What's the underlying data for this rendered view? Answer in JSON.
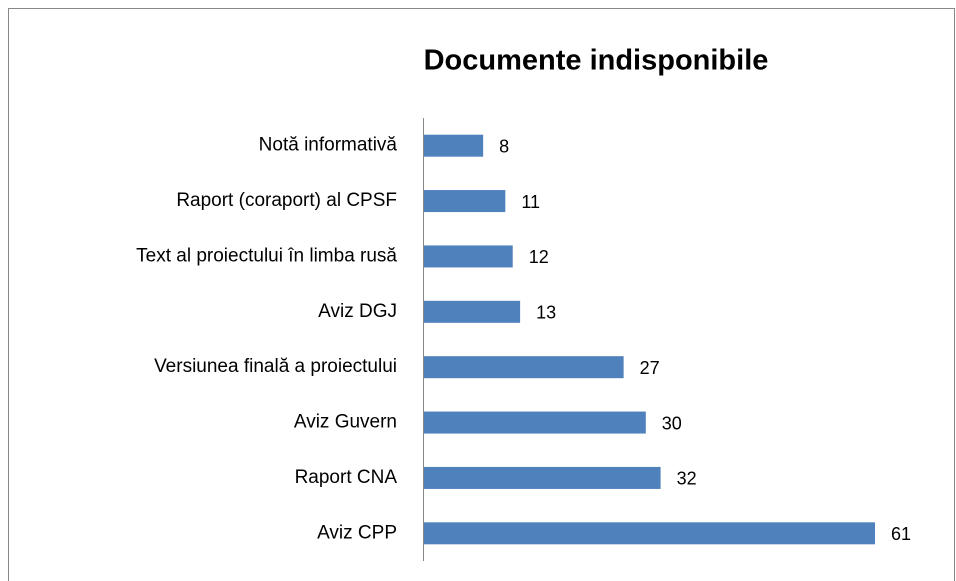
{
  "chart_data": {
    "type": "bar",
    "orientation": "horizontal",
    "title": "Documente indisponibile",
    "categories": [
      "Notă informativă",
      "Raport (coraport) al CPSF",
      "Text al proiectului în limba rusă",
      "Aviz DGJ",
      "Versiunea finală a proiectului",
      "Aviz Guvern",
      "Raport CNA",
      "Aviz CPP"
    ],
    "values": [
      8,
      11,
      12,
      13,
      27,
      30,
      32,
      61
    ],
    "color": "#4f81bd"
  }
}
